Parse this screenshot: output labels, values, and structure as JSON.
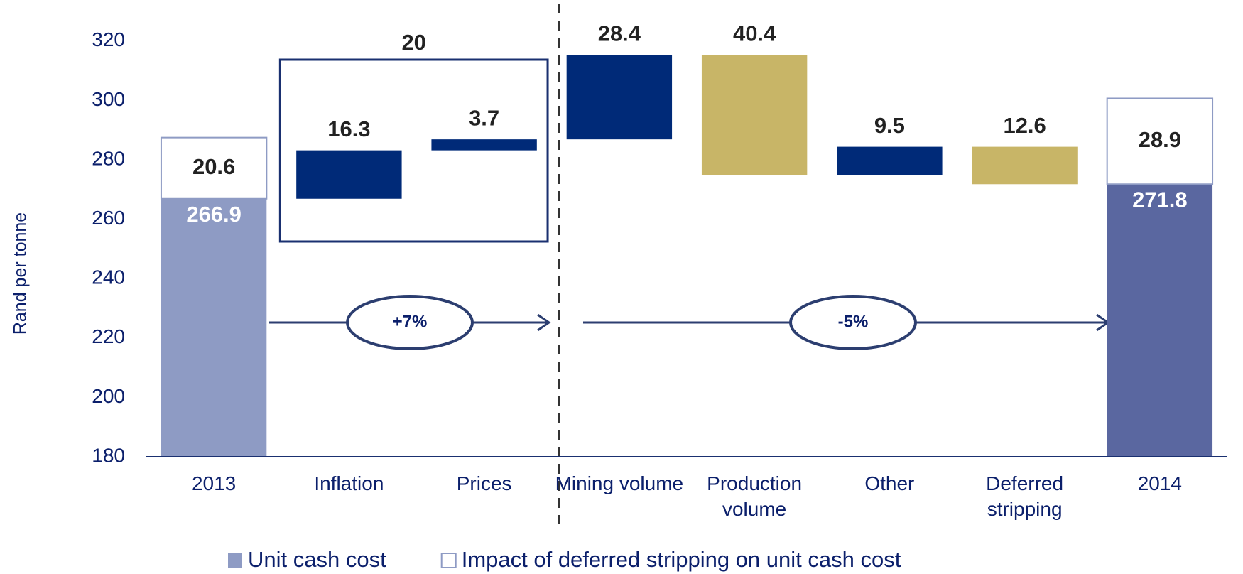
{
  "chart_data": {
    "type": "waterfall",
    "y_label": "Rand per tonne",
    "categories": [
      "2013",
      "Inflation",
      "Prices",
      "Mining volume",
      "Production volume",
      "Other",
      "Deferred stripping",
      "2014"
    ],
    "series": [
      {
        "name": "Unit cash cost",
        "color": "#8e9bc4",
        "measure": [
          "absolute",
          "relative",
          "relative",
          "relative",
          "relative",
          "relative",
          "relative",
          "absolute"
        ],
        "values": [
          266.9,
          16.3,
          3.7,
          28.4,
          -40.4,
          9.5,
          -12.6,
          271.8
        ],
        "value_labels": [
          "266.9",
          "16.3",
          "3.7",
          "28.4",
          "40.4",
          "9.5",
          "12.6",
          "271.8"
        ],
        "bar_colors": [
          "#8e9bc4",
          "#002a78",
          "#002a78",
          "#002a78",
          "#c8b567",
          "#002a78",
          "#c8b567",
          "#5a67a0"
        ]
      },
      {
        "name": "Impact of deferred stripping on unit cash cost",
        "color": "#ffffff",
        "edge_color": "#8e9bc4",
        "values": [
          20.6,
          null,
          null,
          null,
          null,
          null,
          null,
          28.9
        ]
      }
    ],
    "group_total": 20,
    "annotations": [
      "+7%",
      "-5%"
    ],
    "ylim": [
      180,
      330
    ],
    "yticks": [
      180,
      200,
      220,
      240,
      260,
      280,
      300,
      320
    ],
    "grid": false
  }
}
